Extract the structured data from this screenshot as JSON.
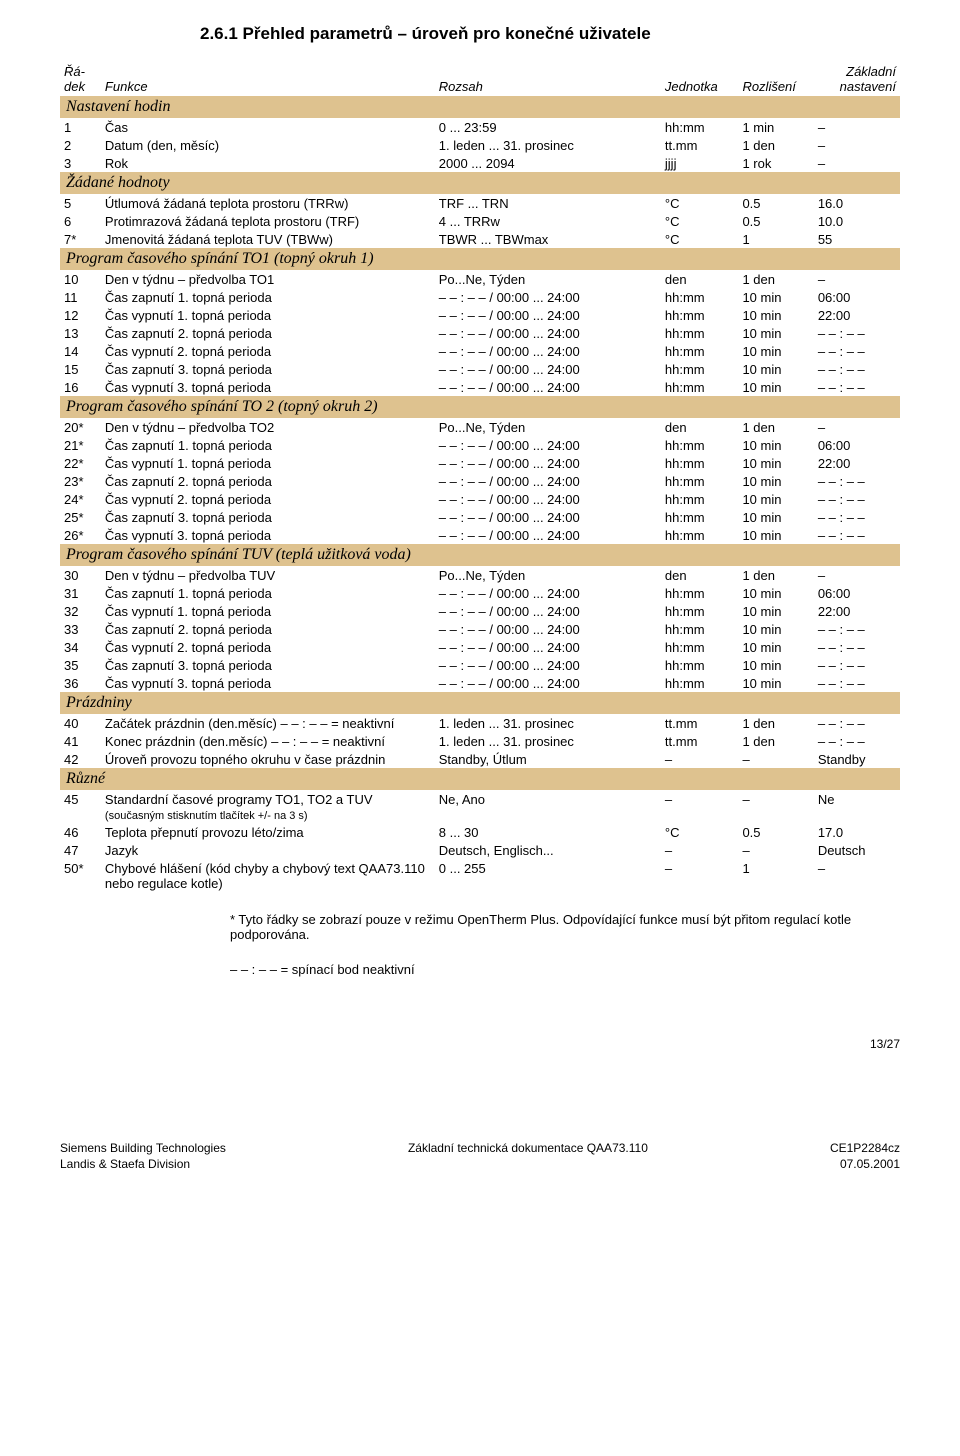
{
  "heading": "2.6.1  Přehled parametrů – úroveň pro konečné uživatele",
  "columns": {
    "c1a": "Řá-",
    "c1b": "dek",
    "c2": "Funkce",
    "c3": "Rozsah",
    "c4": "Jednotka",
    "c5": "Rozlišení",
    "c6a": "Základní",
    "c6b": "nastavení"
  },
  "sections": [
    {
      "title": "Nastavení hodin",
      "rows": [
        {
          "n": "1",
          "func": "Čas",
          "range": "0 ... 23:59",
          "unit": "hh:mm",
          "res": "1 min",
          "def": "–"
        },
        {
          "n": "2",
          "func": "Datum (den, měsíc)",
          "range": "1. leden ... 31. prosinec",
          "unit": "tt.mm",
          "res": "1 den",
          "def": "–"
        },
        {
          "n": "3",
          "func": "Rok",
          "range": "2000 ... 2094",
          "unit": "jjjj",
          "res": "1 rok",
          "def": "–"
        }
      ]
    },
    {
      "title": "Žádané hodnoty",
      "rows": [
        {
          "n": "5",
          "func": "Útlumová žádaná teplota prostoru (TRRw)",
          "range": "TRF ... TRN",
          "unit": "°C",
          "res": "0.5",
          "def": "16.0"
        },
        {
          "n": "6",
          "func": "Protimrazová žádaná teplota prostoru (TRF)",
          "range": "4 ... TRRw",
          "unit": "°C",
          "res": "0.5",
          "def": "10.0"
        },
        {
          "n": "7*",
          "func": "Jmenovitá žádaná teplota TUV (TBWw)",
          "range": "TBWR ... TBWmax",
          "unit": "°C",
          "res": "1",
          "def": "55"
        }
      ]
    },
    {
      "title": "Program časového spínání TO1 (topný okruh 1)",
      "rows": [
        {
          "n": "10",
          "func": "Den v týdnu – předvolba TO1",
          "range": "Po...Ne, Týden",
          "unit": "den",
          "res": "1 den",
          "def": "–"
        },
        {
          "n": "11",
          "func": "Čas zapnutí    1. topná perioda",
          "range": "– – : – –  / 00:00 ... 24:00",
          "unit": "hh:mm",
          "res": "10 min",
          "def": "06:00"
        },
        {
          "n": "12",
          "func": "Čas vypnutí    1. topná perioda",
          "range": "– – : – –  / 00:00 ... 24:00",
          "unit": "hh:mm",
          "res": "10 min",
          "def": "22:00"
        },
        {
          "n": "13",
          "func": "Čas zapnutí    2. topná perioda",
          "range": "– – : – –  / 00:00 ... 24:00",
          "unit": "hh:mm",
          "res": "10 min",
          "def": "– – : – –"
        },
        {
          "n": "14",
          "func": "Čas vypnutí    2. topná perioda",
          "range": "– – : – –  / 00:00 ... 24:00",
          "unit": "hh:mm",
          "res": "10 min",
          "def": "– – : – –"
        },
        {
          "n": "15",
          "func": "Čas zapnutí    3. topná perioda",
          "range": "– – : – –  / 00:00 ... 24:00",
          "unit": "hh:mm",
          "res": "10 min",
          "def": "– – : – –"
        },
        {
          "n": "16",
          "func": "Čas vypnutí    3. topná perioda",
          "range": "– – : – –  / 00:00 ... 24:00",
          "unit": "hh:mm",
          "res": "10 min",
          "def": "– – : – –"
        }
      ]
    },
    {
      "title": "Program časového spínání TO 2 (topný okruh 2)",
      "rows": [
        {
          "n": "20*",
          "func": "Den v týdnu – předvolba TO2",
          "range": "Po...Ne, Týden",
          "unit": "den",
          "res": "1 den",
          "def": "–"
        },
        {
          "n": "21*",
          "func": "Čas zapnutí    1. topná perioda",
          "range": "– – : – –  / 00:00 ... 24:00",
          "unit": "hh:mm",
          "res": "10 min",
          "def": "06:00"
        },
        {
          "n": "22*",
          "func": "Čas vypnutí    1. topná perioda",
          "range": "– – : – –  / 00:00 ... 24:00",
          "unit": "hh:mm",
          "res": "10 min",
          "def": "22:00"
        },
        {
          "n": "23*",
          "func": "Čas zapnutí    2. topná perioda",
          "range": "– – : – –  / 00:00 ... 24:00",
          "unit": "hh:mm",
          "res": "10 min",
          "def": "– – : – –"
        },
        {
          "n": "24*",
          "func": "Čas vypnutí    2. topná perioda",
          "range": "– – : – –  / 00:00 ... 24:00",
          "unit": "hh:mm",
          "res": "10 min",
          "def": "– – : – –"
        },
        {
          "n": "25*",
          "func": "Čas zapnutí    3. topná perioda",
          "range": "– – : – –  / 00:00 ... 24:00",
          "unit": "hh:mm",
          "res": "10 min",
          "def": "– – : – –"
        },
        {
          "n": "26*",
          "func": "Čas vypnutí    3. topná perioda",
          "range": "– – : – –  / 00:00 ... 24:00",
          "unit": "hh:mm",
          "res": "10 min",
          "def": "– – : – –"
        }
      ]
    },
    {
      "title": "Program časového spínání TUV (teplá užitková voda)",
      "rows": [
        {
          "n": "30",
          "func": "Den v týdnu – předvolba TUV",
          "range": "Po...Ne, Týden",
          "unit": "den",
          "res": "1 den",
          "def": "–"
        },
        {
          "n": "31",
          "func": "Čas zapnutí    1. topná perioda",
          "range": "– – : – –  / 00:00 ... 24:00",
          "unit": "hh:mm",
          "res": "10 min",
          "def": "06:00"
        },
        {
          "n": "32",
          "func": "Čas vypnutí    1. topná perioda",
          "range": "– – : – –  / 00:00 ... 24:00",
          "unit": "hh:mm",
          "res": "10 min",
          "def": "22:00"
        },
        {
          "n": "33",
          "func": "Čas zapnutí    2. topná perioda",
          "range": "– – : – –  / 00:00 ... 24:00",
          "unit": "hh:mm",
          "res": "10 min",
          "def": "– – : – –"
        },
        {
          "n": "34",
          "func": "Čas vypnutí    2. topná perioda",
          "range": "– – : – –  / 00:00 ... 24:00",
          "unit": "hh:mm",
          "res": "10 min",
          "def": "– – : – –"
        },
        {
          "n": "35",
          "func": "Čas zapnutí    3. topná perioda",
          "range": "– – : – –  / 00:00 ... 24:00",
          "unit": "hh:mm",
          "res": "10 min",
          "def": "– – : – –"
        },
        {
          "n": "36",
          "func": "Čas vypnutí    3. topná perioda",
          "range": "– – : – –  / 00:00 ... 24:00",
          "unit": "hh:mm",
          "res": "10 min",
          "def": "– – : – –"
        }
      ]
    },
    {
      "title": "Prázdniny",
      "rows": [
        {
          "n": "40",
          "func": "Začátek prázdnin (den.měsíc)     – – : – –  = neaktivní",
          "range": "1. leden ... 31. prosinec",
          "unit": "tt.mm",
          "res": "1 den",
          "def": "– – : – –"
        },
        {
          "n": "41",
          "func": "Konec prázdnin (den.měsíc)       – – : – –  = neaktivní",
          "range": "1. leden ... 31. prosinec",
          "unit": "tt.mm",
          "res": "1 den",
          "def": "– – : – –"
        },
        {
          "n": "42",
          "func": "Úroveň provozu topného okruhu v čase prázdnin",
          "range": "Standby, Útlum",
          "unit": "–",
          "res": "–",
          "def": "Standby"
        }
      ]
    },
    {
      "title": "Různé",
      "rows": [
        {
          "n": "45",
          "func": "Standardní časové programy TO1, TO2 a TUV",
          "range": "Ne, Ano",
          "unit": "–",
          "res": "–",
          "def": "Ne"
        },
        {
          "n": "",
          "func": "(současným stisknutím tlačítek +/- na 3 s)",
          "range": "",
          "unit": "",
          "res": "",
          "def": "",
          "small": true
        },
        {
          "n": "46",
          "func": "Teplota přepnutí provozu léto/zima",
          "range": "8 ... 30",
          "unit": "°C",
          "res": "0.5",
          "def": "17.0"
        },
        {
          "n": "47",
          "func": "Jazyk",
          "range": "Deutsch, Englisch...",
          "unit": "–",
          "res": "–",
          "def": "Deutsch"
        },
        {
          "n": "50*",
          "func": "Chybové hlášení (kód chyby a chybový text QAA73.110 nebo regulace kotle)",
          "range": "0 ... 255",
          "unit": "–",
          "res": "1",
          "def": "–"
        }
      ]
    }
  ],
  "note_star": "*    Tyto řádky se zobrazí pouze v režimu OpenTherm Plus. Odpovídající funkce musí být přitom regulací kotle podporována.",
  "note_dash": "– – : – –   = spínací bod neaktivní",
  "pagenum": "13/27",
  "footer": {
    "left1": "Siemens Building Technologies",
    "left2": "Landis & Staefa Division",
    "center": "Základní technická dokumentace QAA73.110",
    "right1": "CE1P2284cz",
    "right2": "07.05.2001"
  },
  "colors": {
    "section_bg": "#dec28f",
    "text": "#000000",
    "page_bg": "#ffffff"
  }
}
